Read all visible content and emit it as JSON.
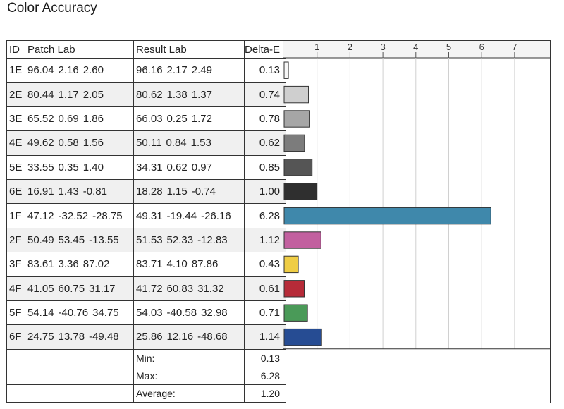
{
  "title": "Color Accuracy",
  "headers": {
    "id": "ID",
    "patch": "Patch Lab",
    "result": "Result Lab",
    "de": "Delta-E"
  },
  "rows": [
    {
      "id": "1E",
      "patch": [
        "96.04",
        "2.16",
        "2.60"
      ],
      "result": [
        "96.16",
        "2.17",
        "2.49"
      ],
      "de": "0.13",
      "color": "#f7f7f7"
    },
    {
      "id": "2E",
      "patch": [
        "80.44",
        "1.17",
        "2.05"
      ],
      "result": [
        "80.62",
        "1.38",
        "1.37"
      ],
      "de": "0.74",
      "color": "#cfcfcf"
    },
    {
      "id": "3E",
      "patch": [
        "65.52",
        "0.69",
        "1.86"
      ],
      "result": [
        "66.03",
        "0.25",
        "1.72"
      ],
      "de": "0.78",
      "color": "#a6a6a6"
    },
    {
      "id": "4E",
      "patch": [
        "49.62",
        "0.58",
        "1.56"
      ],
      "result": [
        "50.11",
        "0.84",
        "1.53"
      ],
      "de": "0.62",
      "color": "#7c7c7c"
    },
    {
      "id": "5E",
      "patch": [
        "33.55",
        "0.35",
        "1.40"
      ],
      "result": [
        "34.31",
        "0.62",
        "0.97"
      ],
      "de": "0.85",
      "color": "#555555"
    },
    {
      "id": "6E",
      "patch": [
        "16.91",
        "1.43",
        "-0.81"
      ],
      "result": [
        "18.28",
        "1.15",
        "-0.74"
      ],
      "de": "1.00",
      "color": "#2f2f2f"
    },
    {
      "id": "1F",
      "patch": [
        "47.12",
        "-32.52",
        "-28.75"
      ],
      "result": [
        "49.31",
        "-19.44",
        "-26.16"
      ],
      "de": "6.28",
      "color": "#3f88ab"
    },
    {
      "id": "2F",
      "patch": [
        "50.49",
        "53.45",
        "-13.55"
      ],
      "result": [
        "51.53",
        "52.33",
        "-12.83"
      ],
      "de": "1.12",
      "color": "#c2609f"
    },
    {
      "id": "3F",
      "patch": [
        "83.61",
        "3.36",
        "87.02"
      ],
      "result": [
        "83.71",
        "4.10",
        "87.86"
      ],
      "de": "0.43",
      "color": "#efcd45"
    },
    {
      "id": "4F",
      "patch": [
        "41.05",
        "60.75",
        "31.17"
      ],
      "result": [
        "41.72",
        "60.83",
        "31.32"
      ],
      "de": "0.61",
      "color": "#b62b38"
    },
    {
      "id": "5F",
      "patch": [
        "54.14",
        "-40.76",
        "34.75"
      ],
      "result": [
        "54.03",
        "-40.58",
        "32.98"
      ],
      "de": "0.71",
      "color": "#4a9a58"
    },
    {
      "id": "6F",
      "patch": [
        "24.75",
        "13.78",
        "-49.48"
      ],
      "result": [
        "25.86",
        "12.16",
        "-48.68"
      ],
      "de": "1.14",
      "color": "#264c93"
    }
  ],
  "stats": [
    {
      "label": "Min:",
      "value": "0.13"
    },
    {
      "label": "Max:",
      "value": "6.28"
    },
    {
      "label": "Average:",
      "value": "1.20"
    }
  ],
  "chart_data": {
    "type": "bar",
    "orientation": "horizontal",
    "categories": [
      "1E",
      "2E",
      "3E",
      "4E",
      "5E",
      "6E",
      "1F",
      "2F",
      "3F",
      "4F",
      "5F",
      "6F"
    ],
    "values": [
      0.13,
      0.74,
      0.78,
      0.62,
      0.85,
      1.0,
      6.28,
      1.12,
      0.43,
      0.61,
      0.71,
      1.14
    ],
    "xlim": [
      0,
      8
    ],
    "xticks": [
      1,
      2,
      3,
      4,
      5,
      6,
      7
    ],
    "grid": true
  }
}
